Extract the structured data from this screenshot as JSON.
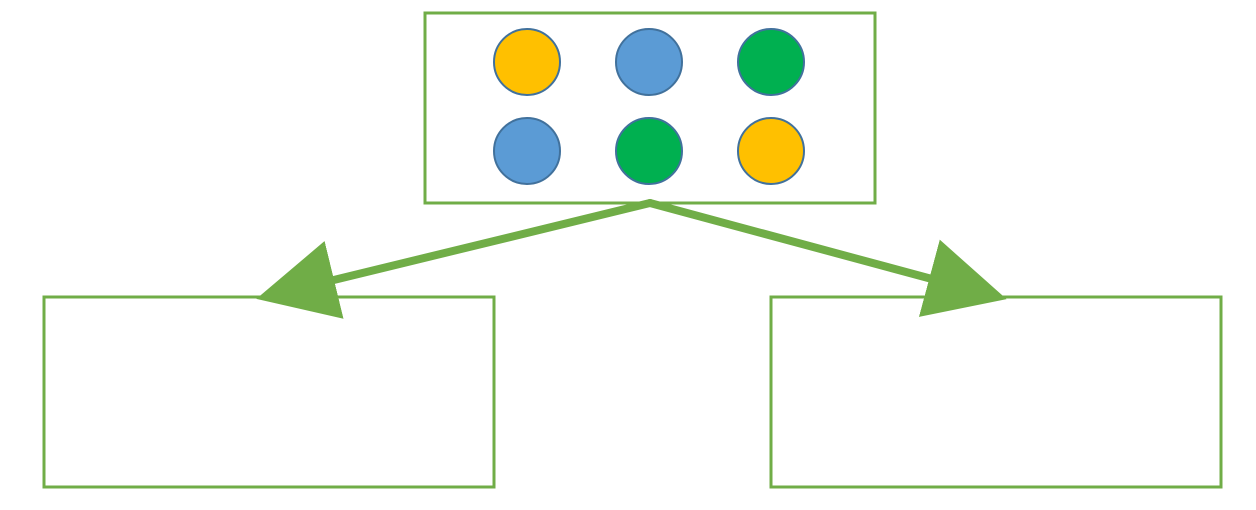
{
  "diagram": {
    "colors": {
      "box_border": "#70AD47",
      "arrow": "#70AD47",
      "circle_outline": "#41719C",
      "yellow": "#FFC000",
      "blue": "#5B9BD5",
      "green": "#00B050"
    },
    "source_box": {
      "rows": [
        [
          "yellow",
          "blue",
          "green"
        ],
        [
          "blue",
          "green",
          "yellow"
        ]
      ]
    },
    "target_boxes": [
      {
        "id": "left",
        "items": []
      },
      {
        "id": "right",
        "items": []
      }
    ],
    "arrows": [
      {
        "from": "source_box",
        "to": "left"
      },
      {
        "from": "source_box",
        "to": "right"
      }
    ]
  }
}
